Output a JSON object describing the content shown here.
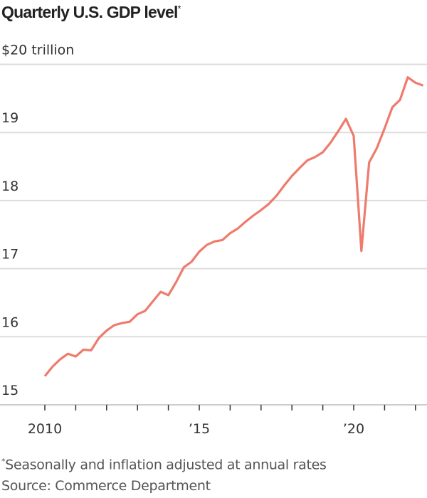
{
  "title": "Quarterly U.S. GDP level",
  "title_mark": "*",
  "footnote_mark": "*",
  "footnote": "Seasonally and inflation adjusted at annual rates",
  "source": "Source: Commerce Department",
  "colors": {
    "line": "#ee7b6c",
    "grid": "#dddddd",
    "axis": "#cccccc"
  },
  "chart_data": {
    "type": "line",
    "title": "Quarterly U.S. GDP level*",
    "ylabel": "",
    "xlabel": "",
    "ylim": [
      15,
      20
    ],
    "yticks": [
      15,
      16,
      17,
      18,
      19,
      20
    ],
    "ytick_labels": [
      "15",
      "16",
      "17",
      "18",
      "19",
      "$20 trillion"
    ],
    "xticks_years": [
      2010,
      2011,
      2012,
      2013,
      2014,
      2015,
      2016,
      2017,
      2018,
      2019,
      2020,
      2021,
      2022
    ],
    "xtick_labels": [
      {
        "year": 2010,
        "label": "2010"
      },
      {
        "year": 2015,
        "label": "’15"
      },
      {
        "year": 2020,
        "label": "’20"
      }
    ],
    "grid": true,
    "x_start": "2010 Q1",
    "x": [
      "2010 Q1",
      "2010 Q2",
      "2010 Q3",
      "2010 Q4",
      "2011 Q1",
      "2011 Q2",
      "2011 Q3",
      "2011 Q4",
      "2012 Q1",
      "2012 Q2",
      "2012 Q3",
      "2012 Q4",
      "2013 Q1",
      "2013 Q2",
      "2013 Q3",
      "2013 Q4",
      "2014 Q1",
      "2014 Q2",
      "2014 Q3",
      "2014 Q4",
      "2015 Q1",
      "2015 Q2",
      "2015 Q3",
      "2015 Q4",
      "2016 Q1",
      "2016 Q2",
      "2016 Q3",
      "2016 Q4",
      "2017 Q1",
      "2017 Q2",
      "2017 Q3",
      "2017 Q4",
      "2018 Q1",
      "2018 Q2",
      "2018 Q3",
      "2018 Q4",
      "2019 Q1",
      "2019 Q2",
      "2019 Q3",
      "2019 Q4",
      "2020 Q1",
      "2020 Q2",
      "2020 Q3",
      "2020 Q4",
      "2021 Q1",
      "2021 Q2",
      "2021 Q3",
      "2021 Q4",
      "2022 Q1",
      "2022 Q2"
    ],
    "values": [
      15.42,
      15.56,
      15.67,
      15.75,
      15.71,
      15.81,
      15.8,
      15.98,
      16.09,
      16.17,
      16.2,
      16.22,
      16.33,
      16.38,
      16.52,
      16.66,
      16.61,
      16.8,
      17.02,
      17.1,
      17.25,
      17.35,
      17.4,
      17.42,
      17.52,
      17.59,
      17.69,
      17.78,
      17.86,
      17.95,
      18.07,
      18.22,
      18.36,
      18.48,
      18.59,
      18.64,
      18.71,
      18.85,
      19.02,
      19.2,
      18.95,
      17.26,
      18.56,
      18.77,
      19.06,
      19.37,
      19.48,
      19.81,
      19.73,
      19.69
    ]
  }
}
